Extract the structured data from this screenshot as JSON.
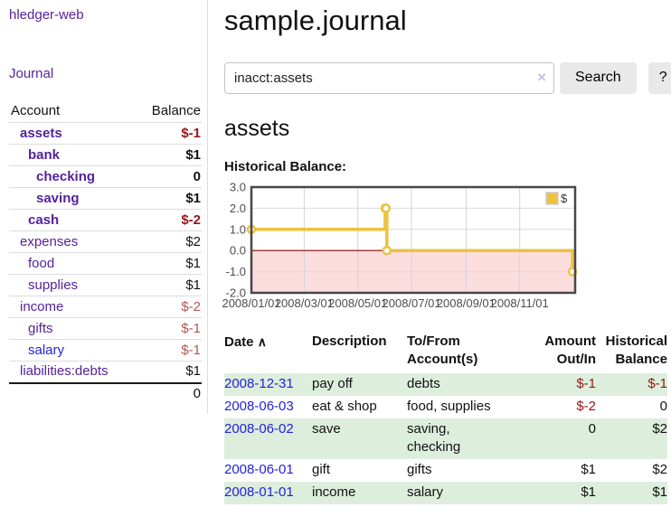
{
  "app": {
    "title": "hledger-web"
  },
  "colors": {
    "link_purple": "#552299",
    "link_blue": "#2222dd",
    "negative_strong": "#971616",
    "negative_soft": "#b25555",
    "chart_line": "#edc240",
    "chart_negative_region": "#fcdddd",
    "chart_zero_line": "#8b0000",
    "row_green": "#ddeedd"
  },
  "sidebar": {
    "journal_link": "Journal",
    "accounts_table": {
      "headers": {
        "account": "Account",
        "balance": "Balance"
      },
      "rows": [
        {
          "name": "assets",
          "balance": "$-1",
          "depth": 1,
          "bold": true,
          "negative": true
        },
        {
          "name": "bank",
          "balance": "$1",
          "depth": 2,
          "bold": true,
          "negative": false
        },
        {
          "name": "checking",
          "balance": "0",
          "depth": 3,
          "bold": true,
          "negative": false
        },
        {
          "name": "saving",
          "balance": "$1",
          "depth": 3,
          "bold": true,
          "negative": false
        },
        {
          "name": "cash",
          "balance": "$-2",
          "depth": 2,
          "bold": true,
          "negative": true
        },
        {
          "name": "expenses",
          "balance": "$2",
          "depth": 1,
          "bold": false,
          "negative": false
        },
        {
          "name": "food",
          "balance": "$1",
          "depth": 2,
          "bold": false,
          "negative": false
        },
        {
          "name": "supplies",
          "balance": "$1",
          "depth": 2,
          "bold": false,
          "negative": false
        },
        {
          "name": "income",
          "balance": "$-2",
          "depth": 1,
          "bold": false,
          "negative": true
        },
        {
          "name": "gifts",
          "balance": "$-1",
          "depth": 2,
          "bold": false,
          "negative": true
        },
        {
          "name": "salary",
          "balance": "$-1",
          "depth": 2,
          "bold": false,
          "negative": true,
          "unvisited": true
        },
        {
          "name": "liabilities:debts",
          "balance": "$1",
          "depth": 1,
          "bold": false,
          "negative": false
        }
      ],
      "total": "0"
    }
  },
  "header": {
    "title": "sample.journal"
  },
  "search": {
    "value": "inacct:assets",
    "clear_label": "×",
    "button_label": "Search",
    "help_label": "?"
  },
  "account_page": {
    "heading": "assets",
    "chart_label": "Historical Balance:"
  },
  "chart_data": {
    "type": "line",
    "style": "step",
    "title": "Historical Balance:",
    "series": [
      {
        "name": "$",
        "color": "#edc240",
        "points": [
          {
            "date": "2008-01-01",
            "value": 1
          },
          {
            "date": "2008-06-01",
            "value": 2
          },
          {
            "date": "2008-06-02",
            "value": 2
          },
          {
            "date": "2008-06-03",
            "value": 0
          },
          {
            "date": "2008-12-31",
            "value": -1
          }
        ]
      }
    ],
    "x_domain": [
      "2008-01-01",
      "2009-01-03"
    ],
    "ylim": [
      -2,
      3
    ],
    "yticks": [
      3.0,
      2.0,
      1.0,
      0.0,
      -1.0,
      -2.0
    ],
    "ytick_labels": [
      "3.0",
      "2.0",
      "1.0",
      "0.0",
      "-1.0",
      "-2.0"
    ],
    "xticks": [
      "2008/01/01",
      "2008/03/01",
      "2008/05/01",
      "2008/07/01",
      "2008/09/01",
      "2008/11/01"
    ],
    "grid": true,
    "legend": {
      "position": "top-right",
      "label": "$"
    },
    "negative_region": true
  },
  "register": {
    "sort_icon": "∧",
    "headers": [
      {
        "label": "Date"
      },
      {
        "label": "Description"
      },
      {
        "label": "To/From Account(s)"
      },
      {
        "label": "Amount Out/In"
      },
      {
        "label": "Historical Balance"
      }
    ],
    "rows": [
      {
        "date": "2008-12-31",
        "description": "pay off",
        "accounts": "debts",
        "amount": "$-1",
        "balance": "$-1",
        "amount_negative": true,
        "balance_negative": true
      },
      {
        "date": "2008-06-03",
        "description": "eat & shop",
        "accounts": "food, supplies",
        "amount": "$-2",
        "balance": "0",
        "amount_negative": true,
        "balance_negative": false
      },
      {
        "date": "2008-06-02",
        "description": "save",
        "accounts": "saving, checking",
        "amount": "0",
        "balance": "$2",
        "amount_negative": false,
        "balance_negative": false
      },
      {
        "date": "2008-06-01",
        "description": "gift",
        "accounts": "gifts",
        "amount": "$1",
        "balance": "$2",
        "amount_negative": false,
        "balance_negative": false
      },
      {
        "date": "2008-01-01",
        "description": "income",
        "accounts": "salary",
        "amount": "$1",
        "balance": "$1",
        "amount_negative": false,
        "balance_negative": false
      }
    ]
  }
}
